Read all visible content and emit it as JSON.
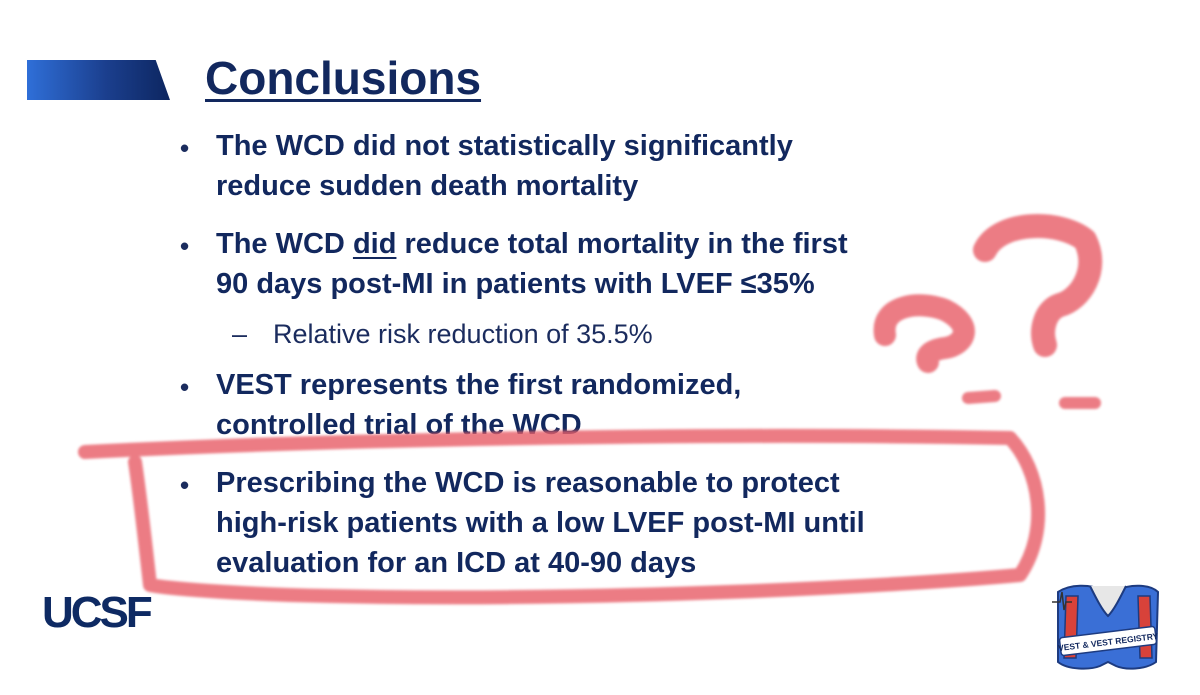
{
  "slide": {
    "title": "Conclusions",
    "bullets": [
      {
        "lines": [
          "The WCD did not statistically significantly",
          "reduce sudden death mortality"
        ]
      },
      {
        "line1_before": "The WCD ",
        "line1_underlined": "did",
        "line1_after": " reduce total mortality in the first",
        "line2": "90 days post-MI in patients with LVEF ≤35%"
      },
      {
        "lines": [
          "VEST represents the first randomized,",
          "controlled trial of the WCD"
        ]
      },
      {
        "lines": [
          "Prescribing the WCD is reasonable to protect",
          "high-risk patients with a low LVEF post-MI until",
          "evaluation for an ICD at 40-90 days"
        ]
      }
    ],
    "sub_bullet": {
      "dash": "–",
      "text": "Relative risk reduction of 35.5%"
    },
    "bullet_char": "•"
  },
  "logos": {
    "ucsf": "UCSF",
    "vest_registry": "VEST & VEST REGISTRY"
  },
  "colors": {
    "text": "#12285e",
    "accent_gradient_start": "#2f6fd8",
    "accent_gradient_end": "#0d2660",
    "highlight_marker": "#e8606a",
    "vest_blue": "#3a6fd6",
    "vest_red": "#d8423a"
  },
  "icons": [
    "question-mark-scribble",
    "highlight-box-scribble",
    "vest-icon"
  ]
}
